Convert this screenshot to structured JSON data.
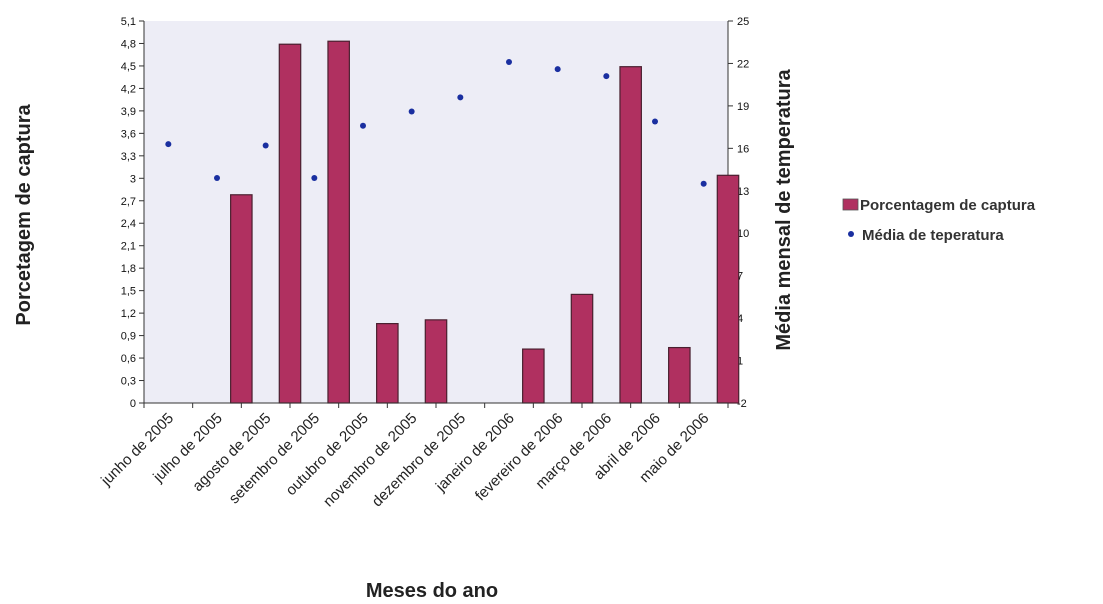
{
  "chart_data": {
    "type": "bar",
    "categories": [
      "junho de 2005",
      "julho de 2005",
      "agosto de 2005",
      "setembro de 2005",
      "outubro de 2005",
      "novembro de 2005",
      "dezembro de 2005",
      "janeiro de 2006",
      "fevereiro de 2006",
      "março de 2006",
      "abril de 2006",
      "maio de 2006"
    ],
    "series": [
      {
        "name": "Porcentagem de captura",
        "type": "bar",
        "axis": "left",
        "color": "#b03060",
        "values": [
          0,
          2.78,
          4.79,
          4.83,
          1.06,
          1.11,
          0,
          0.72,
          1.45,
          4.49,
          0.74,
          3.04
        ]
      },
      {
        "name": "Média de teperatura",
        "type": "scatter",
        "axis": "right",
        "color": "#1a2fa0",
        "values": [
          16.3,
          13.9,
          16.2,
          13.9,
          17.6,
          18.6,
          19.6,
          22.1,
          21.6,
          21.1,
          17.9,
          13.5
        ]
      }
    ],
    "xlabel": "Meses do ano",
    "ylabel": "Porcetagem de captura",
    "y2label": "Média mensal de temperatura",
    "ylim": [
      0,
      5.1
    ],
    "y2lim": [
      -2,
      25
    ],
    "yticks": [
      "0",
      "0,3",
      "0,6",
      "0,9",
      "1,2",
      "1,5",
      "1,8",
      "2,1",
      "2,4",
      "2,7",
      "3",
      "3,3",
      "3,6",
      "3,9",
      "4,2",
      "4,5",
      "4,8",
      "5,1"
    ],
    "y2ticks": [
      "-2",
      "1",
      "4",
      "7",
      "10",
      "13",
      "16",
      "19",
      "22",
      "25"
    ],
    "legend_position": "right",
    "plot_background": "#ededf6"
  }
}
